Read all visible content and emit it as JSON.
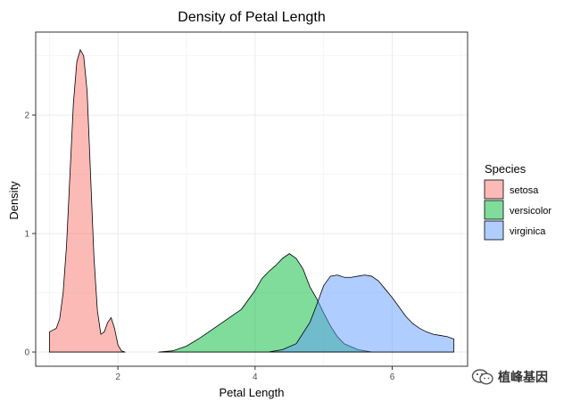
{
  "chart_data": {
    "type": "area",
    "title": "Density of Petal Length",
    "xlabel": "Petal Length",
    "ylabel": "Density",
    "xlim": [
      0.8,
      7.1
    ],
    "ylim": [
      -0.12,
      2.7
    ],
    "x_ticks": [
      2,
      4,
      6
    ],
    "y_ticks": [
      0,
      1,
      2
    ],
    "grid": true,
    "legend": {
      "title": "Species",
      "position": "right"
    },
    "series": [
      {
        "name": "setosa",
        "color": "#F8766D",
        "points": [
          [
            1.0,
            0.17
          ],
          [
            1.1,
            0.2
          ],
          [
            1.15,
            0.28
          ],
          [
            1.2,
            0.5
          ],
          [
            1.25,
            0.9
          ],
          [
            1.3,
            1.5
          ],
          [
            1.35,
            2.1
          ],
          [
            1.4,
            2.45
          ],
          [
            1.45,
            2.55
          ],
          [
            1.5,
            2.5
          ],
          [
            1.55,
            2.2
          ],
          [
            1.6,
            1.5
          ],
          [
            1.65,
            0.8
          ],
          [
            1.7,
            0.35
          ],
          [
            1.75,
            0.15
          ],
          [
            1.8,
            0.17
          ],
          [
            1.85,
            0.25
          ],
          [
            1.9,
            0.29
          ],
          [
            1.95,
            0.2
          ],
          [
            2.0,
            0.06
          ],
          [
            2.05,
            0.01
          ],
          [
            2.1,
            0.0
          ]
        ]
      },
      {
        "name": "versicolor",
        "color": "#00BA38",
        "points": [
          [
            2.6,
            0.0
          ],
          [
            2.8,
            0.01
          ],
          [
            3.0,
            0.05
          ],
          [
            3.2,
            0.12
          ],
          [
            3.4,
            0.2
          ],
          [
            3.6,
            0.28
          ],
          [
            3.8,
            0.36
          ],
          [
            4.0,
            0.52
          ],
          [
            4.1,
            0.62
          ],
          [
            4.2,
            0.68
          ],
          [
            4.3,
            0.73
          ],
          [
            4.4,
            0.79
          ],
          [
            4.5,
            0.83
          ],
          [
            4.6,
            0.79
          ],
          [
            4.7,
            0.7
          ],
          [
            4.8,
            0.55
          ],
          [
            4.9,
            0.45
          ],
          [
            5.0,
            0.33
          ],
          [
            5.1,
            0.22
          ],
          [
            5.2,
            0.13
          ],
          [
            5.3,
            0.07
          ],
          [
            5.5,
            0.02
          ],
          [
            5.7,
            0.0
          ]
        ]
      },
      {
        "name": "virginica",
        "color": "#619CFF",
        "points": [
          [
            4.2,
            0.0
          ],
          [
            4.4,
            0.02
          ],
          [
            4.6,
            0.07
          ],
          [
            4.8,
            0.25
          ],
          [
            4.9,
            0.4
          ],
          [
            5.0,
            0.56
          ],
          [
            5.1,
            0.64
          ],
          [
            5.2,
            0.65
          ],
          [
            5.3,
            0.63
          ],
          [
            5.4,
            0.63
          ],
          [
            5.5,
            0.64
          ],
          [
            5.6,
            0.65
          ],
          [
            5.7,
            0.64
          ],
          [
            5.8,
            0.6
          ],
          [
            5.9,
            0.53
          ],
          [
            6.0,
            0.46
          ],
          [
            6.1,
            0.38
          ],
          [
            6.2,
            0.3
          ],
          [
            6.3,
            0.24
          ],
          [
            6.4,
            0.2
          ],
          [
            6.5,
            0.17
          ],
          [
            6.6,
            0.15
          ],
          [
            6.7,
            0.14
          ],
          [
            6.8,
            0.13
          ],
          [
            6.9,
            0.11
          ]
        ]
      }
    ]
  },
  "watermark": {
    "text": "植峰基因",
    "icon": "wechat-icon"
  }
}
